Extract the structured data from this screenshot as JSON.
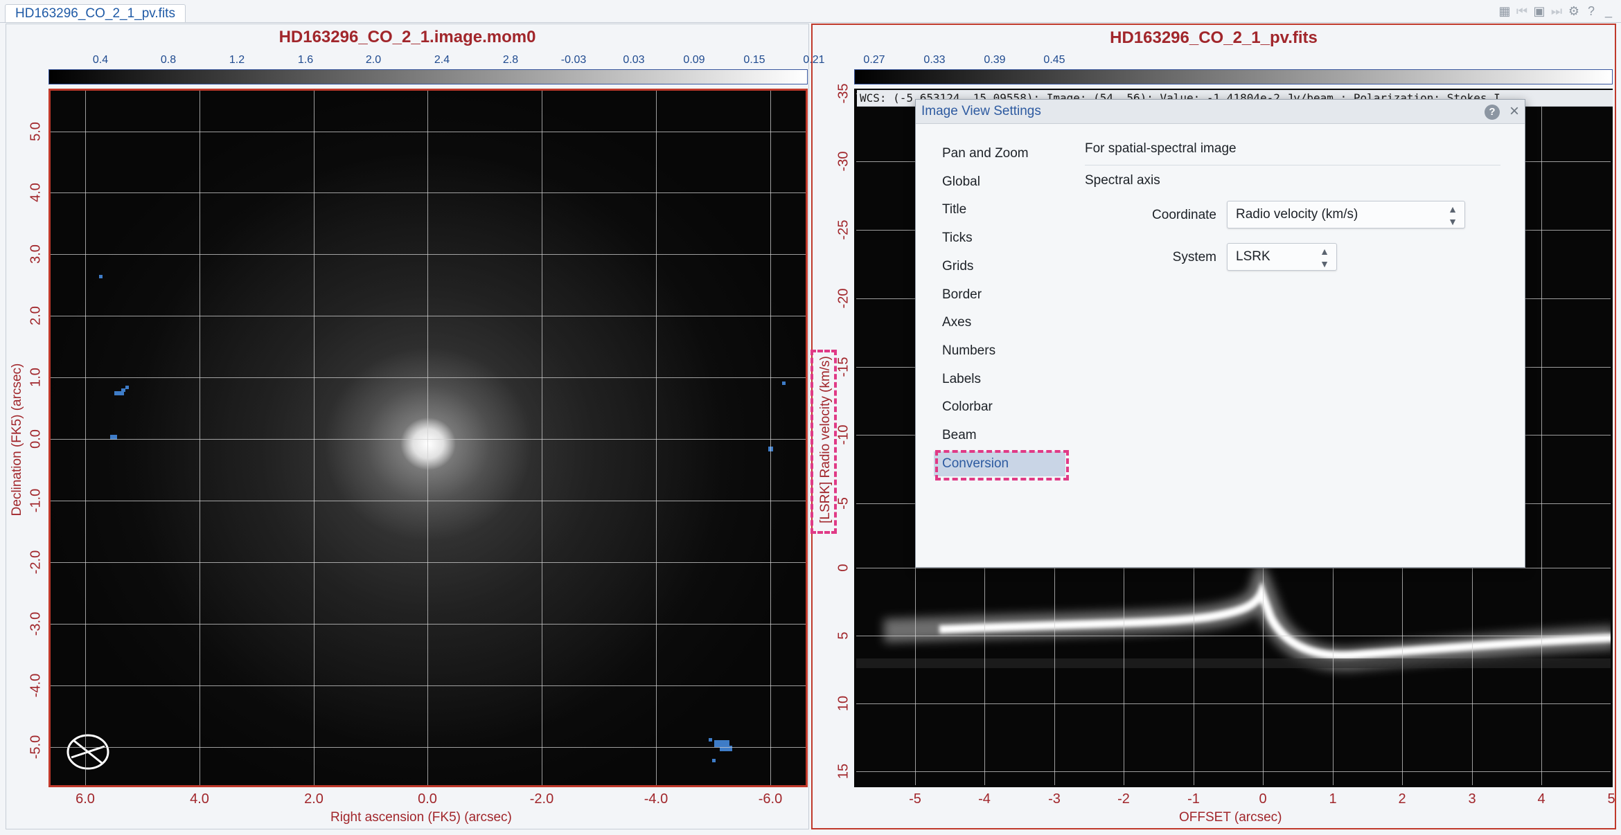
{
  "tab": {
    "label": "HD163296_CO_2_1_pv.fits"
  },
  "left_panel": {
    "title": "HD163296_CO_2_1.image.mom0",
    "colorbar_ticks": [
      "0.4",
      "0.8",
      "1.2",
      "1.6",
      "2.0",
      "2.4",
      "2.8"
    ],
    "x_ticks": [
      "6.0",
      "4.0",
      "2.0",
      "0.0",
      "-2.0",
      "-4.0",
      "-6.0"
    ],
    "y_ticks": [
      "5.0",
      "4.0",
      "3.0",
      "2.0",
      "1.0",
      "0.0",
      "-1.0",
      "-2.0",
      "-3.0",
      "-4.0",
      "-5.0"
    ],
    "xlabel": "Right ascension (FK5) (arcsec)",
    "ylabel": "Declination (FK5) (arcsec)"
  },
  "right_panel": {
    "title": "HD163296_CO_2_1_pv.fits",
    "colorbar_ticks": [
      "-0.03",
      "0.03",
      "0.09",
      "0.15",
      "0.21",
      "0.27",
      "0.33",
      "0.39",
      "0.45"
    ],
    "x_ticks": [
      "-5",
      "-4",
      "-3",
      "-2",
      "-1",
      "0",
      "1",
      "2",
      "3",
      "4",
      "5"
    ],
    "y_ticks": [
      "-35",
      "-30",
      "-25",
      "-20",
      "-15",
      "-10",
      "-5",
      "0",
      "5",
      "10",
      "15"
    ],
    "xlabel": "OFFSET (arcsec)",
    "ylabel": "[LSRK] Radio velocity (km/s)",
    "wcs_text": "WCS: (-5.653124, 15.09558); Image: (54, 56); Value: -1.41804e-2 Jy/beam ; Polarization: Stokes I"
  },
  "dialog": {
    "title": "Image View Settings",
    "help": "?",
    "close": "×",
    "nav": [
      "Pan and Zoom",
      "Global",
      "Title",
      "Ticks",
      "Grids",
      "Border",
      "Axes",
      "Numbers",
      "Labels",
      "Colorbar",
      "Beam",
      "Conversion"
    ],
    "active_nav": "Conversion",
    "section_title": "For spatial-spectral image",
    "subsection": "Spectral axis",
    "coordinate_label": "Coordinate",
    "coordinate_value": "Radio velocity (km/s)",
    "system_label": "System",
    "system_value": "LSRK"
  },
  "icons": {
    "caret": "updown-caret-icon",
    "colors": {
      "accent": "#a1262b",
      "highlight": "#e03a86",
      "mask": "#3e7cc7"
    }
  }
}
